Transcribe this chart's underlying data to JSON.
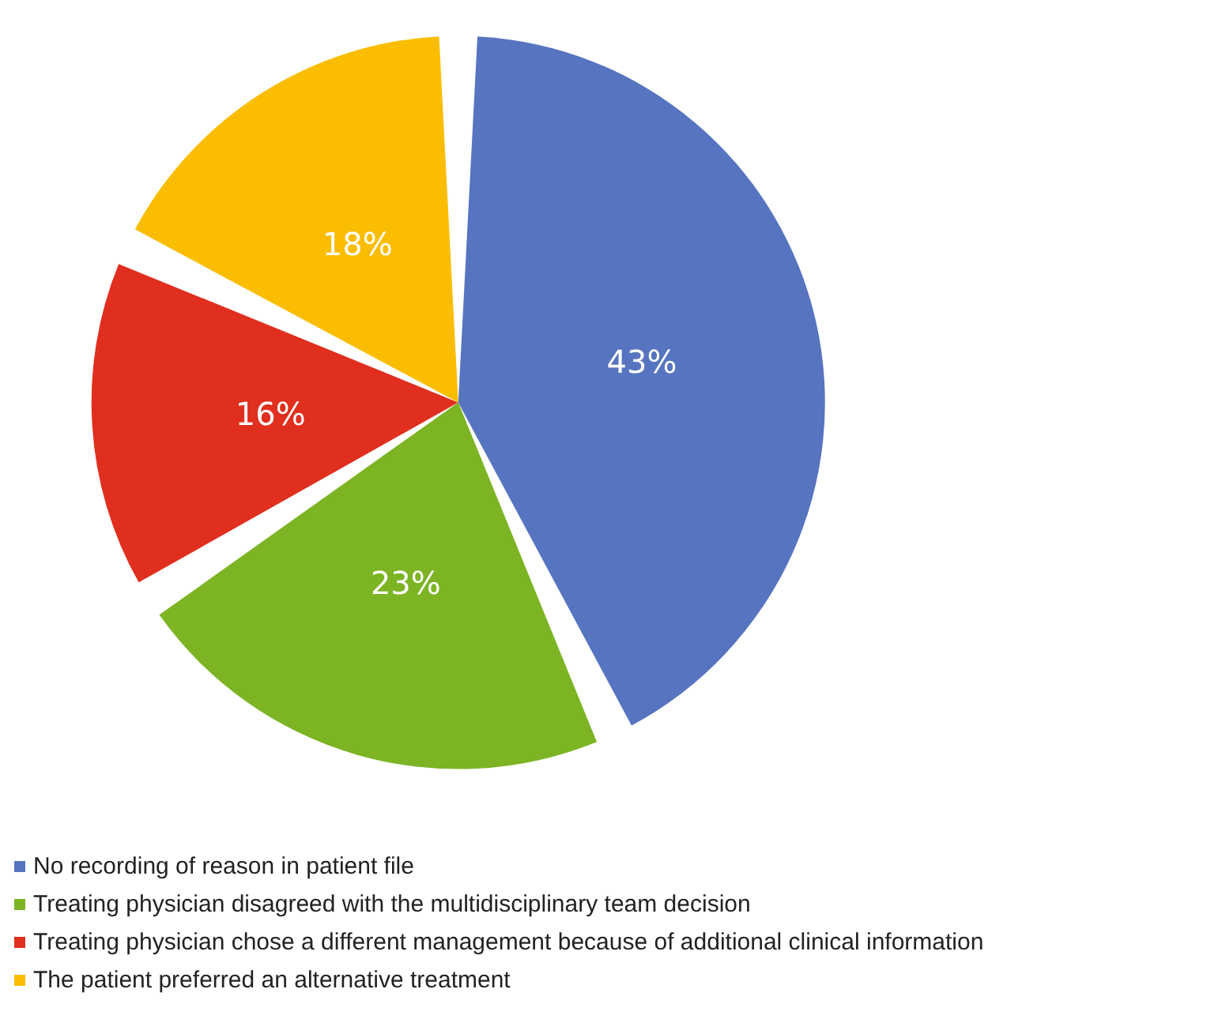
{
  "chart_data": {
    "type": "pie",
    "categories": [
      "No recording of reason in patient file",
      "Treating physician disagreed with the multidisciplinary team decision",
      "Treating physician chose a different management because of additional clinical information",
      "The patient preferred an alternative treatment"
    ],
    "values": [
      43,
      23,
      16,
      18
    ],
    "colors": [
      "#5674c0",
      "#7cb424",
      "#e02f1e",
      "#fbbd00"
    ],
    "value_labels": [
      "43%",
      "23%",
      "16%",
      "18%"
    ],
    "legend": "bottom"
  }
}
